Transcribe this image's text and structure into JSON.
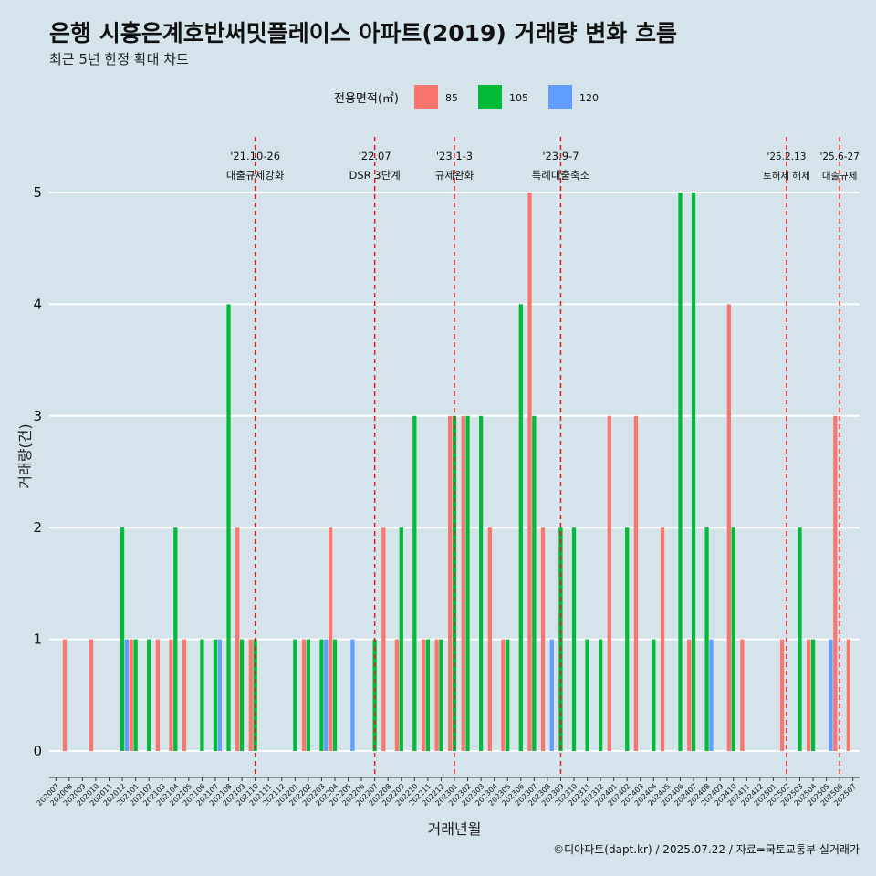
{
  "title": "은행 시흥은계호반써밋플레이스 아파트(2019) 거래량 변화 흐름",
  "subtitle": "최근 5년 한정 확대 차트",
  "caption": "©디아파트(dapt.kr) / 2025.07.22 / 자료=국토교통부 실거래가",
  "chart_data": {
    "type": "bar",
    "xlabel": "거래년월",
    "ylabel": "거래량(건)",
    "ylim": [
      0,
      5
    ],
    "yticks": [
      0,
      1,
      2,
      3,
      4,
      5
    ],
    "grid": true,
    "legend": {
      "title": "전용면적(㎡)",
      "position": "top"
    },
    "months": [
      "202007",
      "202008",
      "202009",
      "202010",
      "202011",
      "202012",
      "202101",
      "202102",
      "202103",
      "202104",
      "202105",
      "202106",
      "202107",
      "202108",
      "202109",
      "202110",
      "202111",
      "202112",
      "202201",
      "202202",
      "202203",
      "202204",
      "202205",
      "202206",
      "202207",
      "202208",
      "202209",
      "202210",
      "202211",
      "202212",
      "202301",
      "202302",
      "202303",
      "202304",
      "202305",
      "202306",
      "202307",
      "202308",
      "202309",
      "202310",
      "202311",
      "202312",
      "202401",
      "202402",
      "202403",
      "202404",
      "202405",
      "202406",
      "202407",
      "202408",
      "202409",
      "202410",
      "202411",
      "202412",
      "202501",
      "202502",
      "202503",
      "202504",
      "202505",
      "202506",
      "202507"
    ],
    "series": [
      {
        "name": "85",
        "color": "#f8766d",
        "values": [
          0,
          1,
          0,
          1,
          0,
          0,
          1,
          0,
          1,
          1,
          1,
          0,
          0,
          0,
          2,
          1,
          0,
          0,
          0,
          1,
          0,
          2,
          0,
          0,
          0,
          2,
          1,
          0,
          1,
          1,
          3,
          3,
          0,
          2,
          1,
          0,
          5,
          2,
          0,
          0,
          0,
          0,
          3,
          0,
          3,
          0,
          2,
          0,
          1,
          0,
          0,
          4,
          1,
          0,
          0,
          1,
          0,
          1,
          0,
          3,
          1
        ]
      },
      {
        "name": "105",
        "color": "#00ba38",
        "values": [
          0,
          0,
          0,
          0,
          0,
          2,
          1,
          1,
          0,
          2,
          0,
          1,
          1,
          4,
          1,
          1,
          0,
          0,
          1,
          1,
          1,
          1,
          0,
          0,
          1,
          0,
          2,
          3,
          1,
          1,
          3,
          3,
          3,
          0,
          1,
          4,
          3,
          0,
          2,
          2,
          1,
          1,
          0,
          2,
          0,
          1,
          0,
          5,
          5,
          2,
          0,
          2,
          0,
          0,
          0,
          0,
          2,
          1,
          0,
          0,
          0
        ]
      },
      {
        "name": "120",
        "color": "#619cff",
        "values": [
          0,
          0,
          0,
          0,
          0,
          1,
          0,
          0,
          0,
          0,
          0,
          0,
          1,
          0,
          0,
          0,
          0,
          0,
          0,
          0,
          1,
          0,
          1,
          0,
          0,
          0,
          0,
          0,
          0,
          0,
          0,
          0,
          0,
          0,
          0,
          0,
          0,
          1,
          0,
          0,
          0,
          0,
          0,
          0,
          0,
          0,
          0,
          0,
          0,
          1,
          0,
          0,
          0,
          0,
          0,
          0,
          0,
          0,
          1,
          0,
          0
        ]
      }
    ],
    "events": [
      {
        "month": "202110",
        "date": "'21.10-26",
        "label": "대출규제강화"
      },
      {
        "month": "202207",
        "date": "'22.07",
        "label": "DSR 3단계"
      },
      {
        "month": "202301",
        "date": "'23.1-3",
        "label": "규제완화"
      },
      {
        "month": "202309",
        "date": "'23.9-7",
        "label": "특례대출축소"
      },
      {
        "month": "202502",
        "date": "'25.2.13",
        "label": "토허제 해제"
      },
      {
        "month": "202506",
        "date": "'25.6-27",
        "label": "대출규제"
      }
    ]
  }
}
